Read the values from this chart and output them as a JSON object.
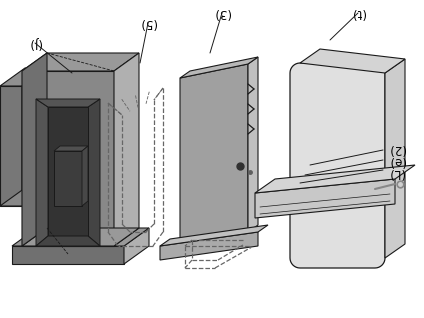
{
  "bg_color": "#ffffff",
  "line_color": "#1a1a1a",
  "c1_front": "#888888",
  "c1_top": "#999999",
  "c1_right": "#b0b0b0",
  "c1_left": "#707070",
  "c1_dark": "#555555",
  "c1_darker": "#444444",
  "c1_darkest": "#333333",
  "c3_face": "#a0a0a0",
  "c3_right": "#c0c0c0",
  "c3_top": "#b8b8b8",
  "c4_face": "#e0e0e0",
  "c4_side": "#cccccc",
  "c4_top": "#d4d4d4",
  "dashed_color": "#666666",
  "labels": {
    "lbl1": "(J)",
    "lbl2": "(5)",
    "lbl3": "(3)",
    "lbl4": "(t)",
    "lbl5": "(2)",
    "lbl6": "(e)",
    "lbl7": "(L)"
  },
  "figsize": [
    4.24,
    3.18
  ],
  "dpi": 100
}
